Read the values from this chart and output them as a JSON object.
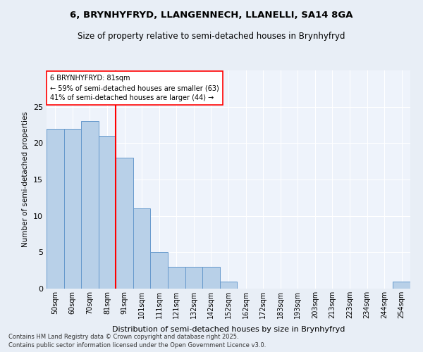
{
  "title1": "6, BRYNHYFRYD, LLANGENNECH, LLANELLI, SA14 8GA",
  "title2": "Size of property relative to semi-detached houses in Brynhyfryd",
  "xlabel": "Distribution of semi-detached houses by size in Brynhyfryd",
  "ylabel": "Number of semi-detached properties",
  "categories": [
    "50sqm",
    "60sqm",
    "70sqm",
    "81sqm",
    "91sqm",
    "101sqm",
    "111sqm",
    "121sqm",
    "132sqm",
    "142sqm",
    "152sqm",
    "162sqm",
    "172sqm",
    "183sqm",
    "193sqm",
    "203sqm",
    "213sqm",
    "223sqm",
    "234sqm",
    "244sqm",
    "254sqm"
  ],
  "values": [
    22,
    22,
    23,
    21,
    18,
    11,
    5,
    3,
    3,
    3,
    1,
    0,
    0,
    0,
    0,
    0,
    0,
    0,
    0,
    0,
    1
  ],
  "bar_color": "#b8d0e8",
  "bar_edge_color": "#6699cc",
  "red_line_x": 3.5,
  "annotation_title": "6 BRYNHYFRYD: 81sqm",
  "annotation_line1": "← 59% of semi-detached houses are smaller (63)",
  "annotation_line2": "41% of semi-detached houses are larger (44) →",
  "ylim": [
    0,
    30
  ],
  "yticks": [
    0,
    5,
    10,
    15,
    20,
    25
  ],
  "footer1": "Contains HM Land Registry data © Crown copyright and database right 2025.",
  "footer2": "Contains public sector information licensed under the Open Government Licence v3.0.",
  "bg_color": "#e8eef6",
  "plot_bg_color": "#eef3fb"
}
